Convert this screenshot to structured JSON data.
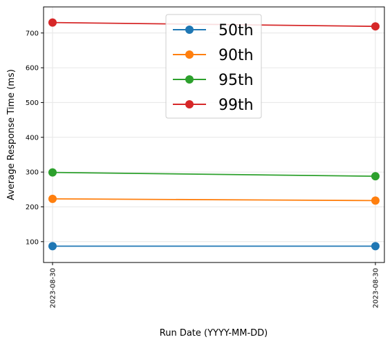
{
  "chart_data": {
    "type": "line",
    "title": "",
    "xlabel": "Run Date (YYYY-MM-DD)",
    "ylabel": "Average Response Time (ms)",
    "categories": [
      "2023-08-30",
      "2023-08-30"
    ],
    "x_tick_labels": [
      "2023-08-30",
      "2023-08-30"
    ],
    "y_ticks": [
      100,
      200,
      300,
      400,
      500,
      600,
      700
    ],
    "ylim": [
      40,
      775
    ],
    "grid": true,
    "legend_position": "top-center",
    "series": [
      {
        "name": "50th",
        "color": "#1f77b4",
        "values": [
          87,
          87
        ]
      },
      {
        "name": "90th",
        "color": "#ff7f0e",
        "values": [
          223,
          218
        ]
      },
      {
        "name": "95th",
        "color": "#2ca02c",
        "values": [
          299,
          288
        ]
      },
      {
        "name": "99th",
        "color": "#d62728",
        "values": [
          730,
          719
        ]
      }
    ]
  }
}
